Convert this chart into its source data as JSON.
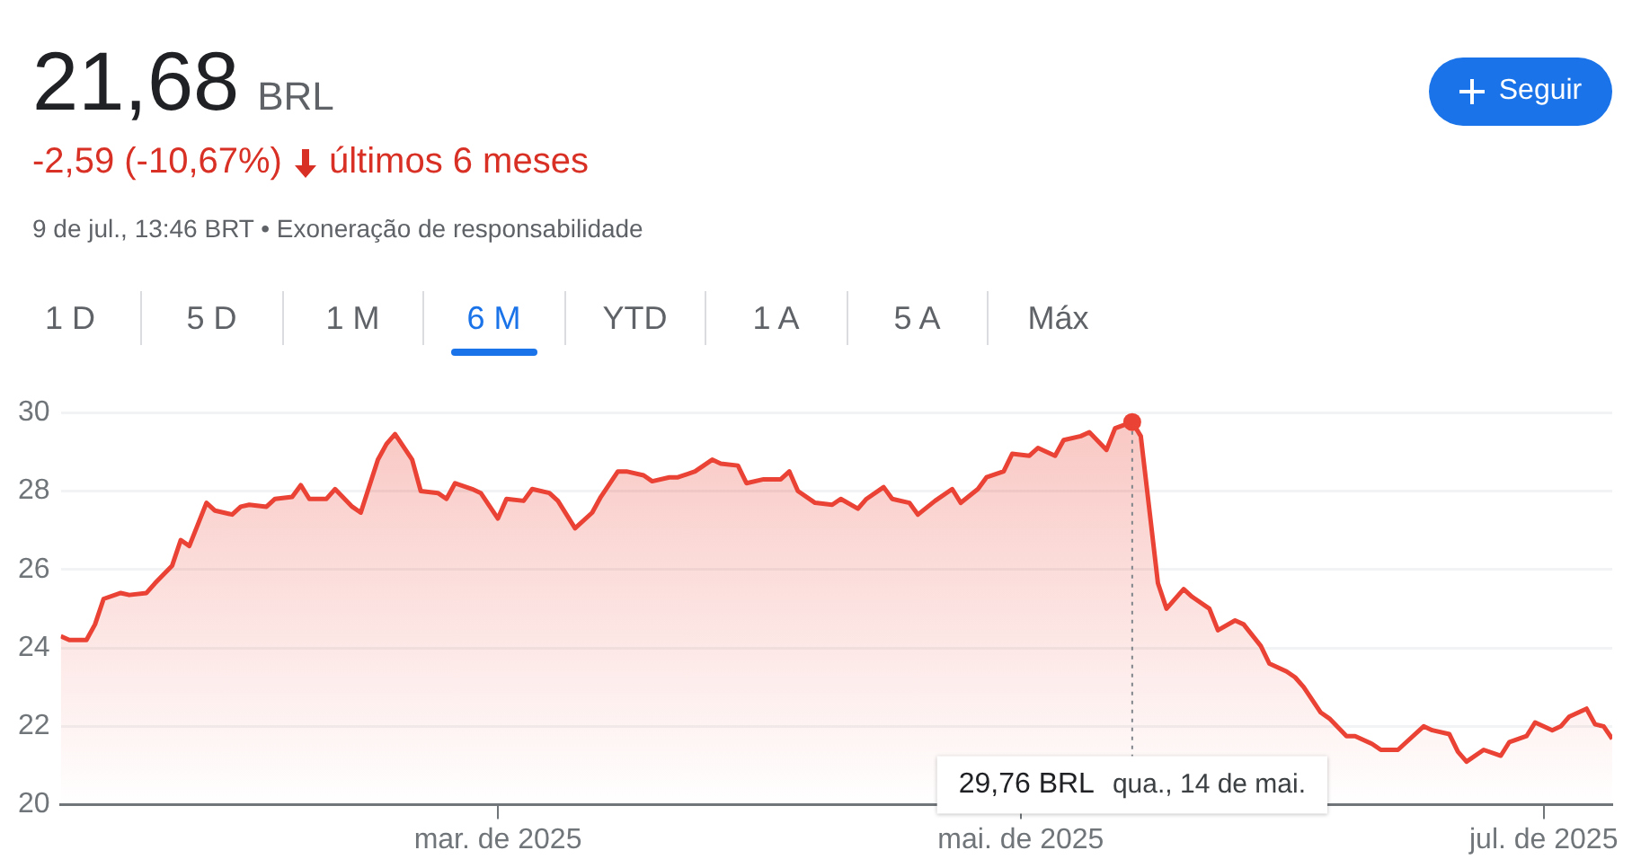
{
  "chart_data": {
    "type": "area",
    "title": "21,68 BRL",
    "annotations": [
      "-2,59 (-10,67%)",
      "últimos 6 meses",
      "9 de jul., 13:46 BRT • Exoneração de responsabilidade",
      "Seguir",
      "1 D",
      "5 D",
      "1 M",
      "6 M",
      "YTD",
      "1 A",
      "5 A",
      "Máx",
      "29,76 BRL",
      "qua., 14 de mai."
    ],
    "ref_lines": [
      {
        "axis": "x",
        "value": "2025-05-14",
        "color": "#80868b",
        "line_style": "dotted"
      }
    ],
    "x": [
      "2025-01-09",
      "2025-01-10",
      "2025-01-12",
      "2025-01-13",
      "2025-01-14",
      "2025-01-16",
      "2025-01-17",
      "2025-01-19",
      "2025-01-20",
      "2025-01-22",
      "2025-01-23",
      "2025-01-24",
      "2025-01-26",
      "2025-01-27",
      "2025-01-29",
      "2025-01-30",
      "2025-01-31",
      "2025-02-02",
      "2025-02-03",
      "2025-02-05",
      "2025-02-06",
      "2025-02-07",
      "2025-02-09",
      "2025-02-10",
      "2025-02-12",
      "2025-02-13",
      "2025-02-15",
      "2025-02-16",
      "2025-02-17",
      "2025-02-19",
      "2025-02-20",
      "2025-02-22",
      "2025-02-23",
      "2025-02-24",
      "2025-02-26",
      "2025-02-27",
      "2025-03-01",
      "2025-03-02",
      "2025-03-04",
      "2025-03-05",
      "2025-03-07",
      "2025-03-08",
      "2025-03-10",
      "2025-03-12",
      "2025-03-13",
      "2025-03-15",
      "2025-03-16",
      "2025-03-18",
      "2025-03-19",
      "2025-03-21",
      "2025-03-22",
      "2025-03-24",
      "2025-03-26",
      "2025-03-27",
      "2025-03-29",
      "2025-03-30",
      "2025-04-01",
      "2025-04-03",
      "2025-04-04",
      "2025-04-05",
      "2025-04-07",
      "2025-04-09",
      "2025-04-10",
      "2025-04-12",
      "2025-04-13",
      "2025-04-15",
      "2025-04-16",
      "2025-04-18",
      "2025-04-19",
      "2025-04-21",
      "2025-04-23",
      "2025-04-24",
      "2025-04-26",
      "2025-04-27",
      "2025-04-29",
      "2025-04-30",
      "2025-05-02",
      "2025-05-03",
      "2025-05-05",
      "2025-05-06",
      "2025-05-08",
      "2025-05-09",
      "2025-05-11",
      "2025-05-12",
      "2025-05-14",
      "2025-05-15",
      "2025-05-17",
      "2025-05-18",
      "2025-05-20",
      "2025-05-21",
      "2025-05-23",
      "2025-05-24",
      "2025-05-26",
      "2025-05-27",
      "2025-05-29",
      "2025-05-30",
      "2025-06-01",
      "2025-06-02",
      "2025-06-03",
      "2025-06-05",
      "2025-06-06",
      "2025-06-08",
      "2025-06-09",
      "2025-06-11",
      "2025-06-12",
      "2025-06-14",
      "2025-06-15",
      "2025-06-17",
      "2025-06-18",
      "2025-06-20",
      "2025-06-21",
      "2025-06-22",
      "2025-06-24",
      "2025-06-26",
      "2025-06-27",
      "2025-06-29",
      "2025-06-30",
      "2025-07-02",
      "2025-07-03",
      "2025-07-04",
      "2025-07-06",
      "2025-07-07",
      "2025-07-08",
      "2025-07-09"
    ],
    "series": [
      {
        "color": "#ea4335",
        "values": [
          24.3,
          24.2,
          24.2,
          24.6,
          25.25,
          25.4,
          25.35,
          25.4,
          25.65,
          26.1,
          26.75,
          26.6,
          27.7,
          27.5,
          27.4,
          27.6,
          27.65,
          27.6,
          27.8,
          27.85,
          28.15,
          27.8,
          27.8,
          28.05,
          27.6,
          27.45,
          28.8,
          29.2,
          29.45,
          28.8,
          28.0,
          27.95,
          27.8,
          28.2,
          28.05,
          27.95,
          27.3,
          27.8,
          27.75,
          28.05,
          27.95,
          27.75,
          27.05,
          27.45,
          27.85,
          28.5,
          28.5,
          28.4,
          28.25,
          28.35,
          28.35,
          28.5,
          28.8,
          28.7,
          28.65,
          28.2,
          28.3,
          28.3,
          28.5,
          28.0,
          27.7,
          27.65,
          27.8,
          27.55,
          27.8,
          28.1,
          27.8,
          27.7,
          27.4,
          27.75,
          28.05,
          27.7,
          28.05,
          28.35,
          28.5,
          28.95,
          28.9,
          29.1,
          28.9,
          29.3,
          29.4,
          29.5,
          29.05,
          29.6,
          29.76,
          29.4,
          25.65,
          25.0,
          25.5,
          25.3,
          25.0,
          24.45,
          24.7,
          24.6,
          24.05,
          23.6,
          23.4,
          23.25,
          23.0,
          22.35,
          22.2,
          21.75,
          21.75,
          21.55,
          21.4,
          21.4,
          21.6,
          22.0,
          21.9,
          21.8,
          21.35,
          21.1,
          21.4,
          21.25,
          21.6,
          21.75,
          22.1,
          21.9,
          22.0,
          22.25,
          22.45,
          22.05,
          22.0,
          21.68
        ]
      }
    ],
    "xlim": [
      "2025-01-09",
      "2025-07-09"
    ],
    "xticks": [
      {
        "value": "2025-03-01",
        "label": "mar. de 2025"
      },
      {
        "value": "2025-05-01",
        "label": "mai. de 2025"
      },
      {
        "value": "2025-07-01",
        "label": "jul. de 2025"
      }
    ],
    "ylim": [
      20,
      30
    ],
    "yticks": [
      20,
      22,
      24,
      26,
      28,
      30
    ],
    "grid": "y",
    "legend": false,
    "marker": "none",
    "line_style": "solid"
  }
}
